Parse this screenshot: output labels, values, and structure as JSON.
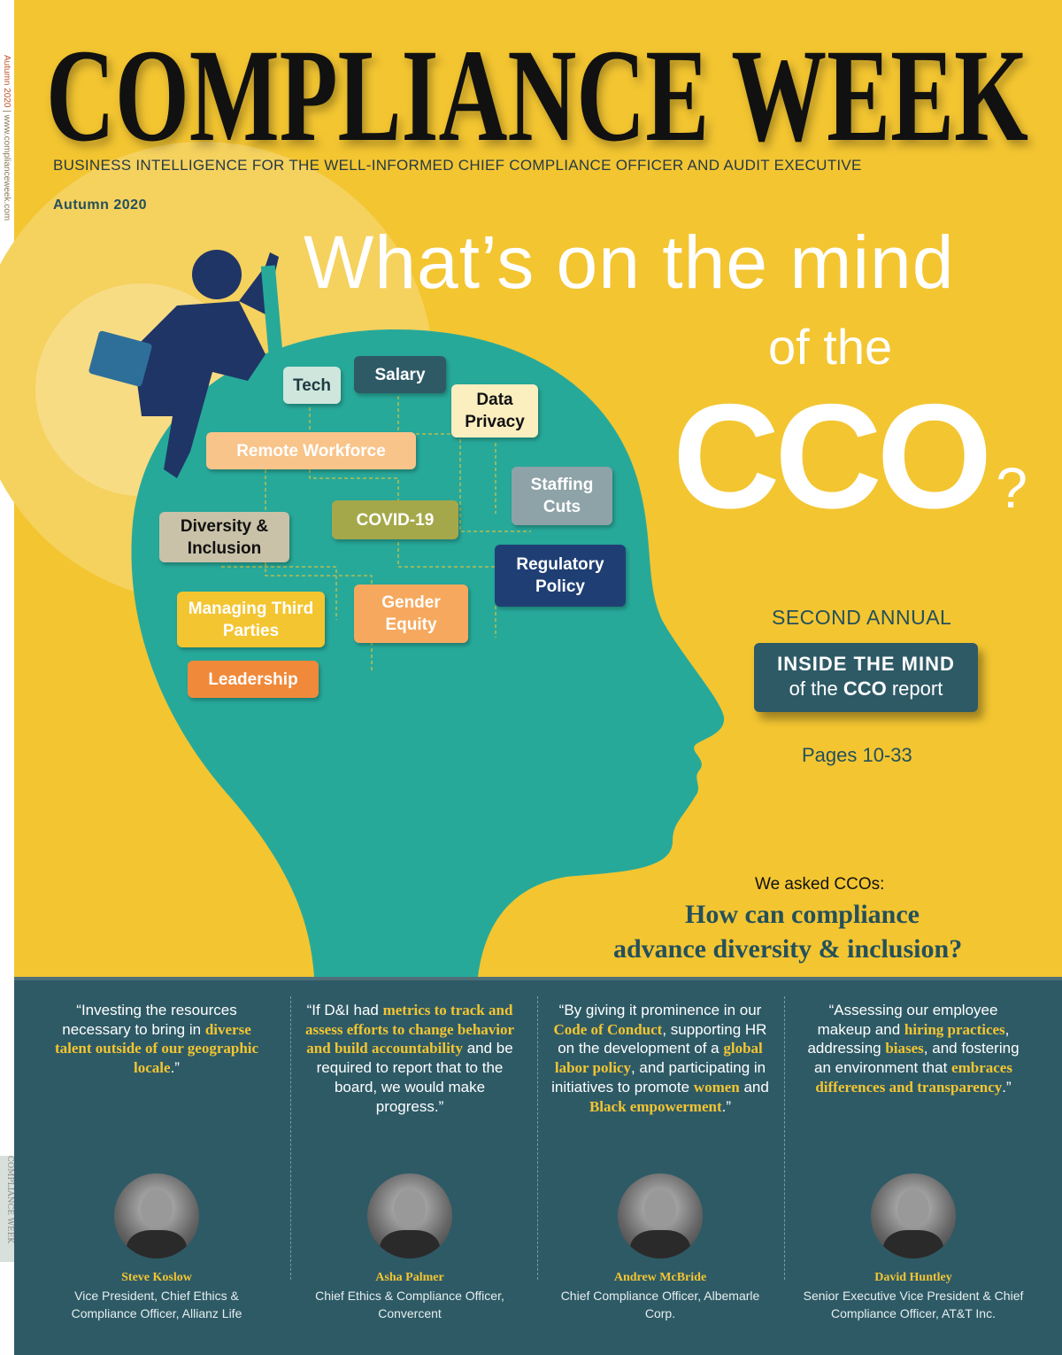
{
  "spine": {
    "issue": "Autumn 2020",
    "separator": "|",
    "url": "www.complianceweek.com",
    "bottom_logo": "COMPLIANCE WEEK"
  },
  "masthead": {
    "title": "COMPLIANCE WEEK",
    "tagline": "BUSINESS INTELLIGENCE FOR THE WELL-INFORMED CHIEF COMPLIANCE OFFICER AND AUDIT EXECUTIVE",
    "issue": "Autumn 2020"
  },
  "headline": {
    "line1": "What’s on the mind",
    "line2": "of the",
    "line3": "CCO",
    "mark": "?"
  },
  "topics": [
    "Tech",
    "Salary",
    "Data Privacy",
    "Remote Workforce",
    "Staffing Cuts",
    "Diversity & Inclusion",
    "COVID-19",
    "Regulatory Policy",
    "Managing Third Parties",
    "Gender Equity",
    "Leadership"
  ],
  "colors": {
    "background": "#f3c531",
    "head": "#27a99a",
    "panel": "#2e5a66",
    "accent": "#f3c531"
  },
  "report": {
    "kicker": "SECOND ANNUAL",
    "title": "INSIDE THE MIND",
    "subtitle_pre": "of the ",
    "subtitle_bold": "CCO",
    "subtitle_post": " report",
    "pages": "Pages 10-33"
  },
  "question": {
    "intro": "We asked CCOs:",
    "line1": "How can compliance",
    "line2": "advance diversity & inclusion?"
  },
  "quotes": [
    {
      "parts": [
        [
          "“Investing the resources necessary to bring in ",
          0
        ],
        [
          "diverse talent outside of our geographic locale",
          1
        ],
        [
          ".”",
          0
        ]
      ],
      "name": "Steve Koslow",
      "role": "Vice President, Chief Ethics & Compliance Officer, Allianz Life"
    },
    {
      "parts": [
        [
          "“If D&I had ",
          0
        ],
        [
          "metrics to track and assess efforts to change behavior and build accountability",
          1
        ],
        [
          " and be required to report that to the board, we would make progress.”",
          0
        ]
      ],
      "name": "Asha Palmer",
      "role": "Chief Ethics & Compliance Officer, Convercent"
    },
    {
      "parts": [
        [
          "“By giving it prominence in our ",
          0
        ],
        [
          "Code of Conduct",
          1
        ],
        [
          ", supporting HR on the development of a ",
          0
        ],
        [
          "global labor policy",
          1
        ],
        [
          ", and participating in initiatives to promote ",
          0
        ],
        [
          "women",
          1
        ],
        [
          " and ",
          0
        ],
        [
          "Black empowerment",
          1
        ],
        [
          ".”",
          0
        ]
      ],
      "name": "Andrew McBride",
      "role": "Chief Compliance Officer, Albemarle Corp."
    },
    {
      "parts": [
        [
          "“Assessing our employee makeup and ",
          0
        ],
        [
          "hiring practices",
          1
        ],
        [
          ", addressing ",
          0
        ],
        [
          "biases",
          1
        ],
        [
          ", and fostering an environment that ",
          0
        ],
        [
          "embraces differences and transparency",
          1
        ],
        [
          ".”",
          0
        ]
      ],
      "name": "David Huntley",
      "role": "Senior Executive Vice President & Chief Compliance Officer, AT&T Inc."
    }
  ]
}
